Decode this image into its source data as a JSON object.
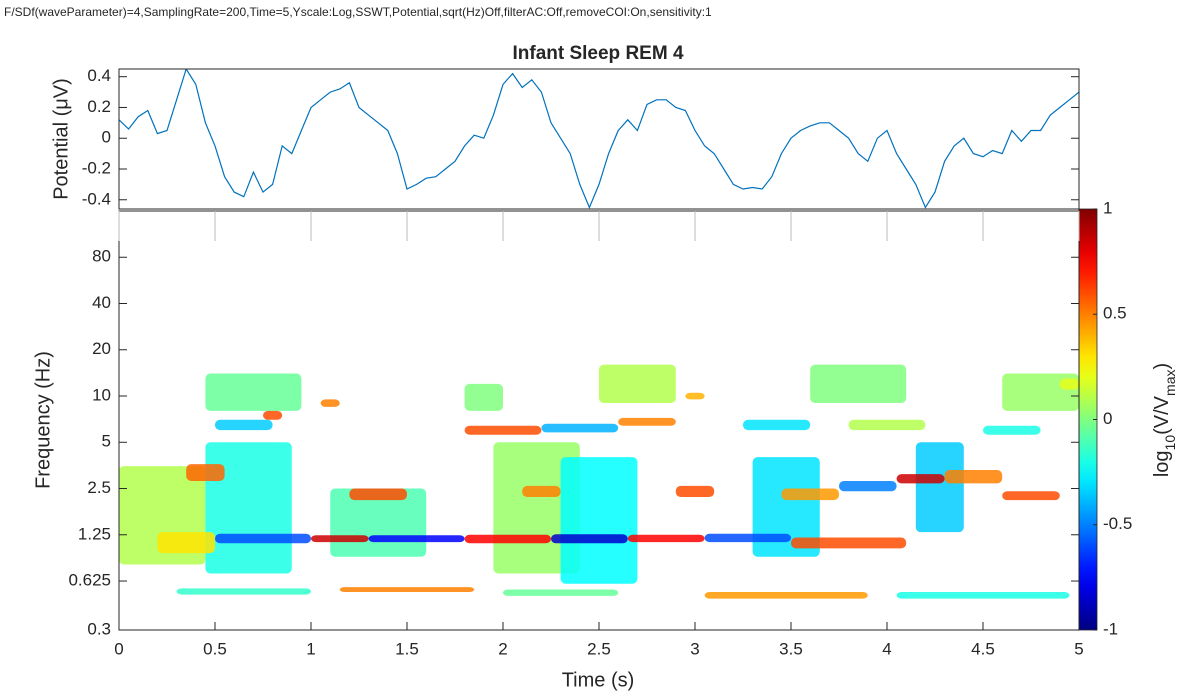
{
  "header": "F/SDf(waveParameter)=4,SamplingRate=200,Time=5,Yscale:Log,SSWT,Potential,sqrt(Hz)Off,filterAC:Off,removeCOI:On,sensitivity:1",
  "chart_data": [
    {
      "type": "line",
      "title": "Infant Sleep REM 4",
      "ylabel": "Potential (μV)",
      "xlim": [
        0,
        5
      ],
      "ylim": [
        -0.46,
        0.45
      ],
      "yticks": [
        -0.4,
        -0.2,
        0,
        0.2,
        0.4
      ],
      "x": [
        0,
        0.05,
        0.1,
        0.15,
        0.2,
        0.25,
        0.3,
        0.35,
        0.4,
        0.45,
        0.5,
        0.55,
        0.6,
        0.65,
        0.7,
        0.75,
        0.8,
        0.85,
        0.9,
        0.95,
        1,
        1.05,
        1.1,
        1.15,
        1.2,
        1.25,
        1.3,
        1.35,
        1.4,
        1.45,
        1.5,
        1.55,
        1.6,
        1.65,
        1.7,
        1.75,
        1.8,
        1.85,
        1.9,
        1.95,
        2,
        2.05,
        2.1,
        2.15,
        2.2,
        2.25,
        2.3,
        2.35,
        2.4,
        2.45,
        2.5,
        2.55,
        2.6,
        2.65,
        2.7,
        2.75,
        2.8,
        2.85,
        2.9,
        2.95,
        3,
        3.05,
        3.1,
        3.15,
        3.2,
        3.25,
        3.3,
        3.35,
        3.4,
        3.45,
        3.5,
        3.55,
        3.6,
        3.65,
        3.7,
        3.75,
        3.8,
        3.85,
        3.9,
        3.95,
        4,
        4.05,
        4.1,
        4.15,
        4.2,
        4.25,
        4.3,
        4.35,
        4.4,
        4.45,
        4.5,
        4.55,
        4.6,
        4.65,
        4.7,
        4.75,
        4.8,
        4.85,
        4.9,
        4.95,
        5
      ],
      "series": [
        {
          "color": "#0072bd",
          "values": [
            0.12,
            0.06,
            0.14,
            0.18,
            0.03,
            0.05,
            0.25,
            0.45,
            0.35,
            0.1,
            -0.05,
            -0.25,
            -0.35,
            -0.38,
            -0.22,
            -0.35,
            -0.3,
            -0.05,
            -0.1,
            0.05,
            0.2,
            0.25,
            0.3,
            0.32,
            0.36,
            0.2,
            0.15,
            0.1,
            0.05,
            -0.1,
            -0.33,
            -0.3,
            -0.26,
            -0.25,
            -0.2,
            -0.15,
            -0.05,
            0.02,
            0,
            0.15,
            0.35,
            0.42,
            0.33,
            0.38,
            0.3,
            0.1,
            0,
            -0.1,
            -0.3,
            -0.45,
            -0.3,
            -0.1,
            0.05,
            0.12,
            0.05,
            0.22,
            0.25,
            0.25,
            0.2,
            0.18,
            0.05,
            -0.05,
            -0.1,
            -0.2,
            -0.3,
            -0.33,
            -0.32,
            -0.33,
            -0.25,
            -0.1,
            0,
            0.05,
            0.08,
            0.1,
            0.1,
            0.05,
            0,
            -0.1,
            -0.15,
            0,
            0.05,
            -0.1,
            -0.2,
            -0.3,
            -0.45,
            -0.35,
            -0.15,
            -0.05,
            0,
            -0.1,
            -0.12,
            -0.08,
            -0.1,
            0.05,
            -0.02,
            0.05,
            0.05,
            0.15,
            0.2,
            0.25,
            0.3
          ]
        }
      ]
    },
    {
      "type": "heatmap",
      "xlabel": "Time (s)",
      "ylabel": "Frequency (Hz)",
      "log_y": true,
      "xlim": [
        0,
        5
      ],
      "xticks": [
        0,
        0.5,
        1,
        1.5,
        2,
        2.5,
        3,
        3.5,
        4,
        4.5,
        5
      ],
      "ylim": [
        0.3,
        160
      ],
      "yticks": [
        0.3,
        0.625,
        1.25,
        2.5,
        5,
        10,
        20,
        40,
        80
      ],
      "colorbar": {
        "label": [
          "log",
          "10",
          "(V/V",
          "max",
          ")"
        ],
        "colormap": "jet",
        "lim": [
          -1,
          1
        ],
        "ticks": [
          -1,
          -0.5,
          0,
          0.5,
          1
        ]
      },
      "ridges": [
        {
          "x": [
            0,
            0.45
          ],
          "freq": [
            0.8,
            3.5
          ],
          "value": 0.1
        },
        {
          "x": [
            0.45,
            0.9
          ],
          "freq": [
            0.7,
            5
          ],
          "value": -0.2
        },
        {
          "x": [
            1.1,
            1.6
          ],
          "freq": [
            0.9,
            2.5
          ],
          "value": -0.1
        },
        {
          "x": [
            1.95,
            2.4
          ],
          "freq": [
            0.7,
            5
          ],
          "value": 0.05
        },
        {
          "x": [
            2.3,
            2.7
          ],
          "freq": [
            0.6,
            4
          ],
          "value": -0.25
        },
        {
          "x": [
            3.3,
            3.65
          ],
          "freq": [
            0.9,
            4
          ],
          "value": -0.3
        },
        {
          "x": [
            4.15,
            4.4
          ],
          "freq": [
            1.3,
            5
          ],
          "value": -0.35
        },
        {
          "x": [
            0.45,
            0.95
          ],
          "freq": [
            8,
            14
          ],
          "value": -0.05
        },
        {
          "x": [
            1.8,
            2
          ],
          "freq": [
            8,
            12
          ],
          "value": 0
        },
        {
          "x": [
            2.5,
            2.9
          ],
          "freq": [
            9,
            16
          ],
          "value": 0.1
        },
        {
          "x": [
            3.6,
            4.1
          ],
          "freq": [
            9,
            16
          ],
          "value": 0
        },
        {
          "x": [
            4.6,
            5
          ],
          "freq": [
            8,
            14
          ],
          "value": 0.05
        },
        {
          "x": [
            0.2,
            0.5
          ],
          "freq": [
            0.95,
            1.3
          ],
          "value": 0.3
        },
        {
          "x": [
            0.5,
            1
          ],
          "freq": [
            1.1,
            1.27
          ],
          "value": -0.6
        },
        {
          "x": [
            1,
            1.3
          ],
          "freq": [
            1.12,
            1.24
          ],
          "value": 0.85
        },
        {
          "x": [
            1.3,
            1.8
          ],
          "freq": [
            1.12,
            1.24
          ],
          "value": -0.75
        },
        {
          "x": [
            1.8,
            2.25
          ],
          "freq": [
            1.1,
            1.25
          ],
          "value": 0.75
        },
        {
          "x": [
            2.25,
            2.65
          ],
          "freq": [
            1.1,
            1.26
          ],
          "value": -0.85
        },
        {
          "x": [
            2.65,
            3.05
          ],
          "freq": [
            1.12,
            1.25
          ],
          "value": 0.75
        },
        {
          "x": [
            3.05,
            3.5
          ],
          "freq": [
            1.12,
            1.27
          ],
          "value": -0.6
        },
        {
          "x": [
            3.5,
            4.1
          ],
          "freq": [
            1.02,
            1.2
          ],
          "value": 0.6
        },
        {
          "x": [
            0.3,
            1
          ],
          "freq": [
            0.51,
            0.56
          ],
          "value": -0.15
        },
        {
          "x": [
            1.15,
            1.85
          ],
          "freq": [
            0.53,
            0.57
          ],
          "value": 0.5
        },
        {
          "x": [
            2,
            2.6
          ],
          "freq": [
            0.5,
            0.55
          ],
          "value": -0.05
        },
        {
          "x": [
            3.05,
            3.9
          ],
          "freq": [
            0.48,
            0.53
          ],
          "value": 0.45
        },
        {
          "x": [
            4.05,
            4.95
          ],
          "freq": [
            0.48,
            0.53
          ],
          "value": -0.2
        },
        {
          "x": [
            0.5,
            0.8
          ],
          "freq": [
            6,
            7
          ],
          "value": -0.35
        },
        {
          "x": [
            0.75,
            0.85
          ],
          "freq": [
            7,
            8
          ],
          "value": 0.6
        },
        {
          "x": [
            1.8,
            2.2
          ],
          "freq": [
            5.6,
            6.4
          ],
          "value": 0.6
        },
        {
          "x": [
            2.2,
            2.6
          ],
          "freq": [
            5.8,
            6.6
          ],
          "value": -0.4
        },
        {
          "x": [
            2.6,
            2.9
          ],
          "freq": [
            6.4,
            7.2
          ],
          "value": 0.5
        },
        {
          "x": [
            3.25,
            3.6
          ],
          "freq": [
            6,
            7
          ],
          "value": -0.3
        },
        {
          "x": [
            3.8,
            4.2
          ],
          "freq": [
            6,
            7
          ],
          "value": 0.1
        },
        {
          "x": [
            4.5,
            4.8
          ],
          "freq": [
            5.6,
            6.4
          ],
          "value": -0.2
        },
        {
          "x": [
            0.35,
            0.55
          ],
          "freq": [
            2.8,
            3.6
          ],
          "value": 0.55
        },
        {
          "x": [
            1.2,
            1.5
          ],
          "freq": [
            2.1,
            2.5
          ],
          "value": 0.6
        },
        {
          "x": [
            2.1,
            2.3
          ],
          "freq": [
            2.2,
            2.6
          ],
          "value": 0.5
        },
        {
          "x": [
            2.9,
            3.1
          ],
          "freq": [
            2.2,
            2.6
          ],
          "value": 0.6
        },
        {
          "x": [
            3.45,
            3.75
          ],
          "freq": [
            2.1,
            2.5
          ],
          "value": 0.45
        },
        {
          "x": [
            3.75,
            4.05
          ],
          "freq": [
            2.4,
            2.8
          ],
          "value": -0.5
        },
        {
          "x": [
            4.05,
            4.3
          ],
          "freq": [
            2.7,
            3.1
          ],
          "value": 0.85
        },
        {
          "x": [
            4.3,
            4.6
          ],
          "freq": [
            2.7,
            3.3
          ],
          "value": 0.5
        },
        {
          "x": [
            4.6,
            4.9
          ],
          "freq": [
            2.1,
            2.4
          ],
          "value": 0.6
        },
        {
          "x": [
            1.05,
            1.15
          ],
          "freq": [
            8.5,
            9.5
          ],
          "value": 0.5
        },
        {
          "x": [
            2.95,
            3.05
          ],
          "freq": [
            9.5,
            10.5
          ],
          "value": 0.4
        },
        {
          "x": [
            4.9,
            5
          ],
          "freq": [
            11,
            13
          ],
          "value": 0.2
        }
      ]
    }
  ]
}
